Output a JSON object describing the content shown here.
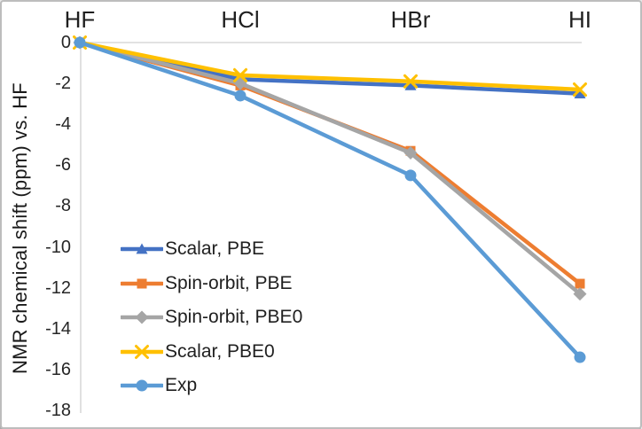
{
  "chart_data": {
    "type": "line",
    "title": "",
    "xlabel": "",
    "ylabel": "NMR chemical shift (ppm) vs. HF",
    "categories": [
      "HF",
      "HCl",
      "HBr",
      "HI"
    ],
    "category_axis_position": "top",
    "yticks": [
      0,
      -2,
      -4,
      -6,
      -8,
      -10,
      -12,
      -14,
      -16,
      -18
    ],
    "ylim": [
      -18,
      0
    ],
    "grid": false,
    "legend_position": "inside-bottom-left",
    "series": [
      {
        "name": "Scalar, PBE",
        "color": "#4472C4",
        "marker": "triangle",
        "values": [
          0,
          -1.8,
          -2.1,
          -2.5
        ]
      },
      {
        "name": "Spin-orbit, PBE",
        "color": "#ED7D31",
        "marker": "square",
        "values": [
          0,
          -2.1,
          -5.3,
          -11.8
        ]
      },
      {
        "name": "Spin-orbit, PBE0",
        "color": "#A5A5A5",
        "marker": "diamond",
        "values": [
          0,
          -2.0,
          -5.4,
          -12.3
        ]
      },
      {
        "name": "Scalar, PBE0",
        "color": "#FFC000",
        "marker": "x",
        "values": [
          0,
          -1.6,
          -1.9,
          -2.3
        ]
      },
      {
        "name": "Exp",
        "color": "#5B9BD5",
        "marker": "circle",
        "values": [
          0,
          -2.6,
          -6.5,
          -15.4
        ]
      }
    ],
    "axis_color": "#d9d9d9"
  }
}
